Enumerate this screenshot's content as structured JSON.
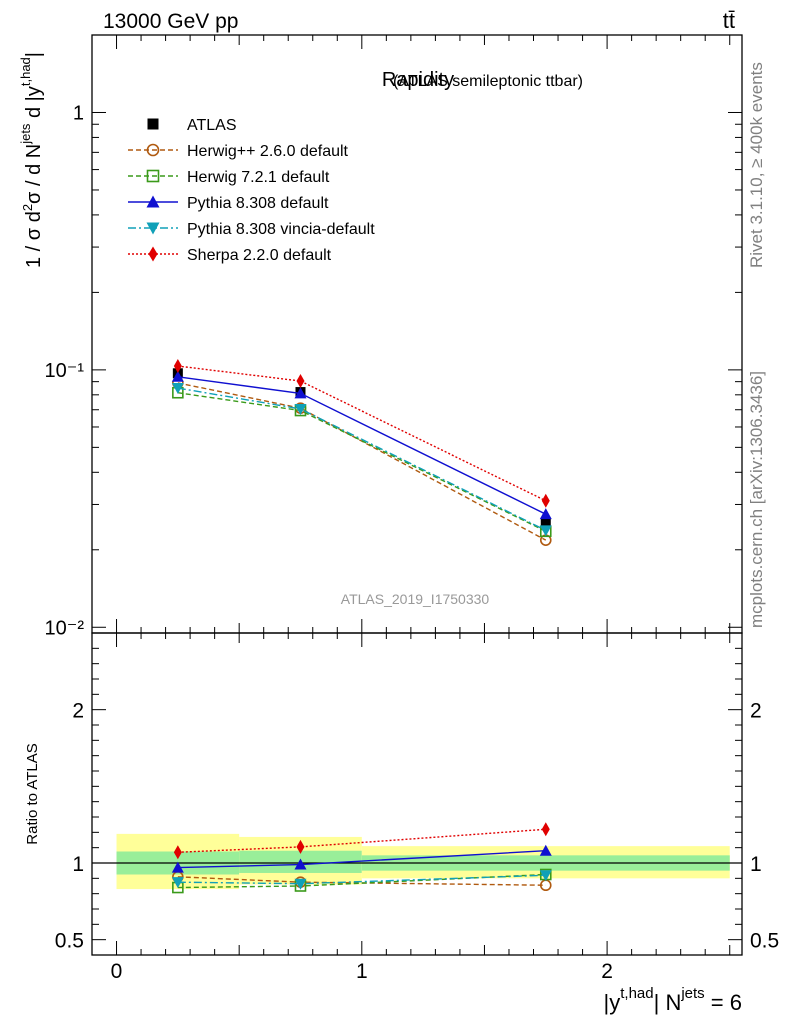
{
  "header": {
    "left": "13000 GeV pp",
    "right": "tt̄"
  },
  "side_labels": {
    "rivet": "Rivet 3.1.10, ≥ 400k events",
    "mcplots": "mcplots.cern.ch [arXiv:1306.3436]"
  },
  "analysis_id": "ATLAS_2019_I1750330",
  "chart_data": [
    {
      "type": "line",
      "title": "Rapidity",
      "subtitle": "(ATLAS semileptonic ttbar)",
      "ylabel": "1 / σ d²σ / d Nʲᵉᵗˢ d |yᵗ'ʰᵃᵈ|",
      "xlabel": "|yᵗ'ʰᵃᵈ| Nʲᵉᵗˢ = 6",
      "yscale": "log",
      "ylim": [
        0.0095,
        2.0
      ],
      "xlim": [
        -0.1,
        2.55
      ],
      "y_tick_labels": [
        "10⁻²",
        "10⁻¹",
        "1"
      ],
      "legend_position": "top-left",
      "x": [
        0.25,
        0.75,
        1.75
      ],
      "series": [
        {
          "name": "ATLAS",
          "color": "#000000",
          "marker": "square-filled",
          "line": "none",
          "values": [
            0.097,
            0.082,
            0.0255
          ]
        },
        {
          "name": "Herwig++ 2.6.0 default",
          "color": "#b05a10",
          "marker": "circle-open",
          "line": "dashed",
          "values": [
            0.089,
            0.071,
            0.0218
          ]
        },
        {
          "name": "Herwig 7.2.1 default",
          "color": "#3a9a1a",
          "marker": "square-open",
          "line": "dashed",
          "values": [
            0.0815,
            0.0695,
            0.0236
          ]
        },
        {
          "name": "Pythia 8.308 default",
          "color": "#1010d0",
          "marker": "triangle-up",
          "line": "solid",
          "values": [
            0.094,
            0.081,
            0.0275
          ]
        },
        {
          "name": "Pythia 8.308 vincia-default",
          "color": "#10a0b8",
          "marker": "triangle-down",
          "line": "dashdot",
          "values": [
            0.085,
            0.0705,
            0.0238
          ]
        },
        {
          "name": "Sherpa 2.2.0 default",
          "color": "#e00000",
          "marker": "diamond",
          "line": "dotted",
          "values": [
            0.1035,
            0.0905,
            0.031
          ]
        }
      ]
    },
    {
      "type": "line",
      "ylabel": "Ratio to ATLAS",
      "xlabel": "|yᵗ'ʰᵃᵈ| Nʲᵉᵗˢ = 6",
      "ylim": [
        0.4,
        2.5
      ],
      "y_tick_labels": [
        "0.5",
        "1",
        "2"
      ],
      "x_tick_labels": [
        "0",
        "1",
        "2"
      ],
      "bands": [
        {
          "x0": 0.0,
          "x1": 0.5,
          "inner": [
            0.925,
            1.075
          ],
          "outer": [
            0.83,
            1.19
          ]
        },
        {
          "x0": 0.5,
          "x1": 1.0,
          "inner": [
            0.935,
            1.08
          ],
          "outer": [
            0.86,
            1.17
          ]
        },
        {
          "x0": 1.0,
          "x1": 2.5,
          "inner": [
            0.95,
            1.05
          ],
          "outer": [
            0.9,
            1.11
          ]
        }
      ],
      "x": [
        0.25,
        0.75,
        1.75
      ],
      "series": [
        {
          "name": "Herwig++ 2.6.0 default",
          "values": [
            0.91,
            0.875,
            0.855
          ]
        },
        {
          "name": "Herwig 7.2.1 default",
          "values": [
            0.84,
            0.85,
            0.925
          ]
        },
        {
          "name": "Pythia 8.308 default",
          "values": [
            0.97,
            0.99,
            1.08
          ]
        },
        {
          "name": "Pythia 8.308 vincia-default",
          "values": [
            0.875,
            0.865,
            0.92
          ]
        },
        {
          "name": "Sherpa 2.2.0 default",
          "values": [
            1.07,
            1.105,
            1.22
          ]
        }
      ]
    }
  ]
}
